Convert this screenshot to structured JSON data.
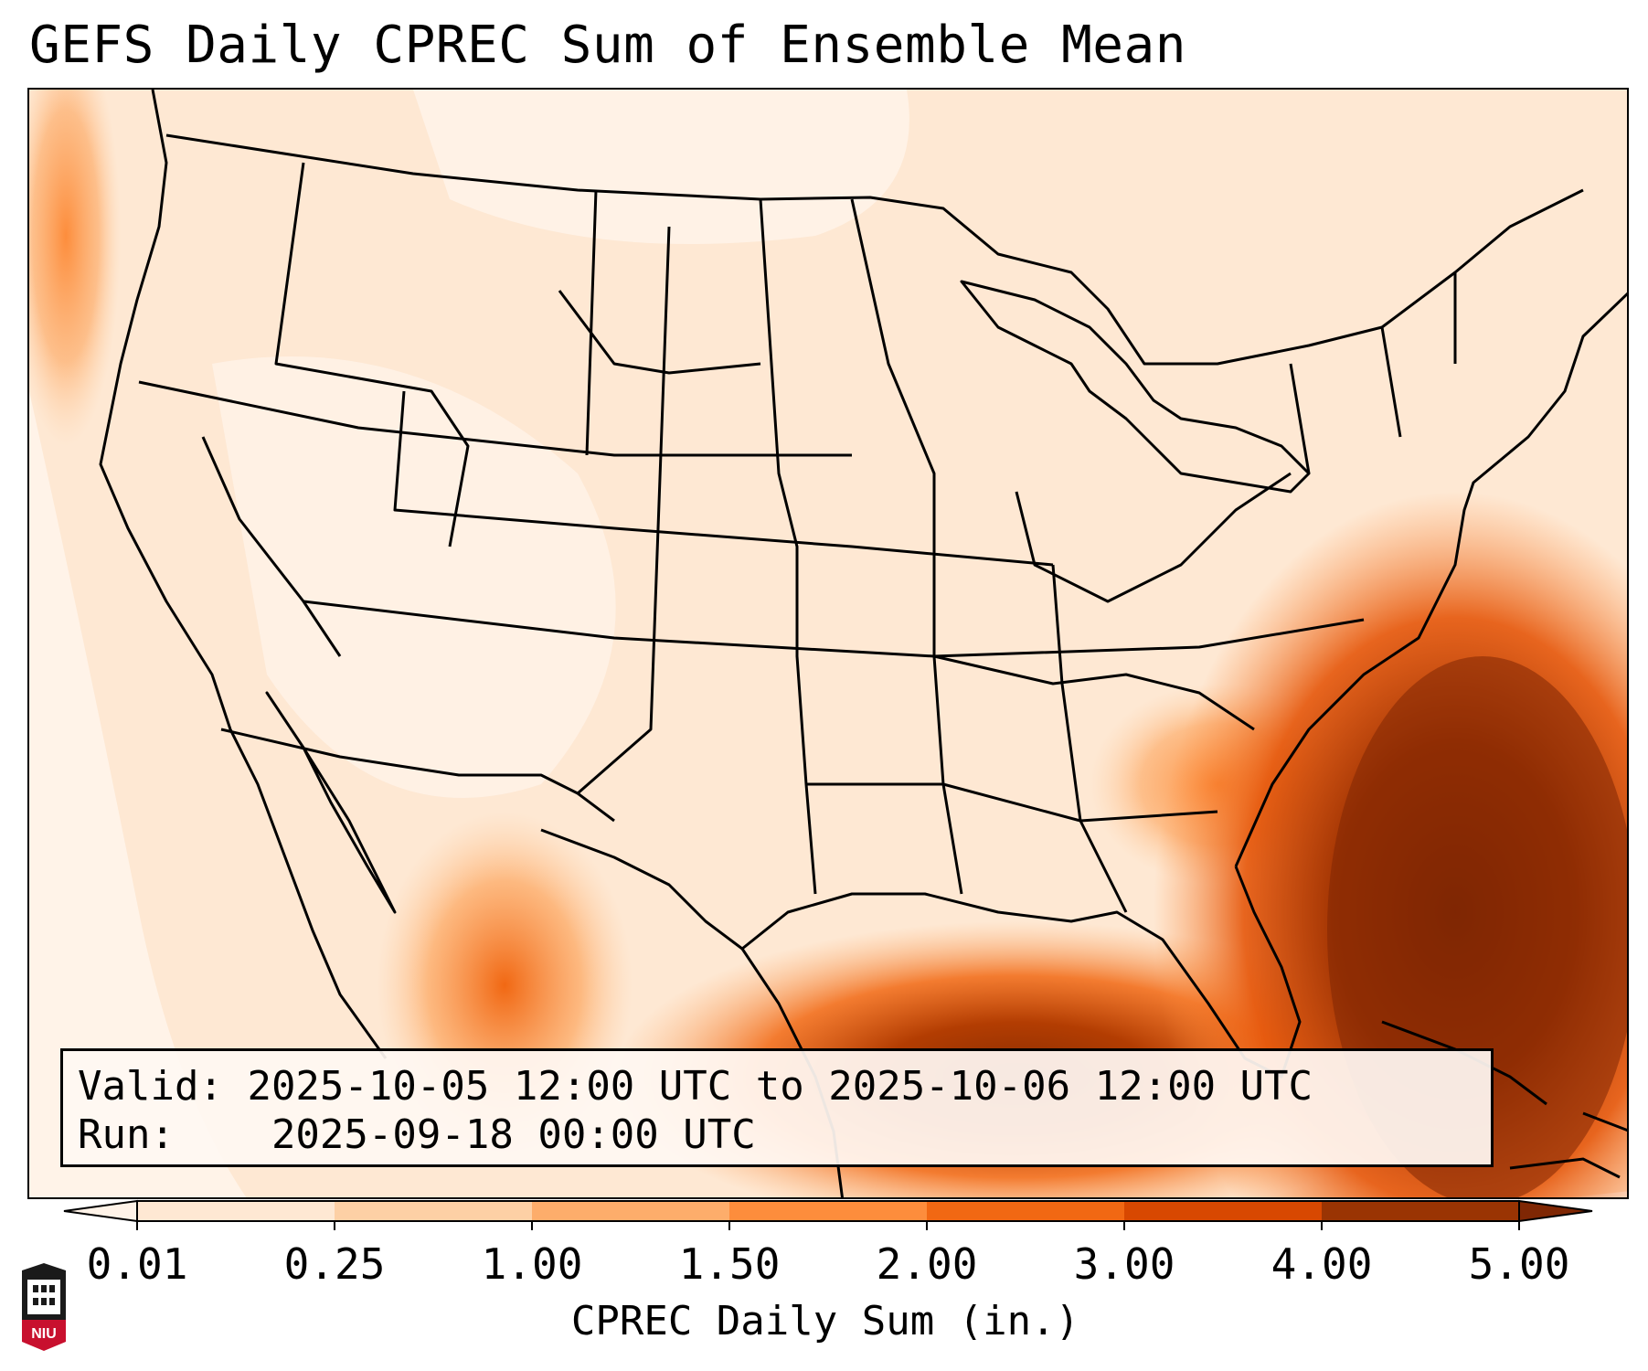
{
  "title": "GEFS Daily CPREC Sum of Ensemble Mean",
  "info": {
    "valid_label": "Valid:",
    "valid_value": "2025-10-05 12:00 UTC to 2025-10-06 12:00 UTC",
    "run_label": "Run:",
    "run_value": "2025-09-18 00:00 UTC"
  },
  "colorbar": {
    "label": "CPREC Daily Sum (in.)",
    "ticks": [
      "0.01",
      "0.25",
      "1.00",
      "1.50",
      "2.00",
      "3.00",
      "4.00",
      "5.00"
    ],
    "colors": [
      "#fff3e8",
      "#fee8d3",
      "#fdd0a5",
      "#fdad6b",
      "#fd8d3c",
      "#f16813",
      "#d84801",
      "#9a3403",
      "#7f2704"
    ],
    "extend": "both"
  },
  "logo": {
    "text": "NIU",
    "icon": "university-tower-icon",
    "color": "#c8102e"
  }
}
